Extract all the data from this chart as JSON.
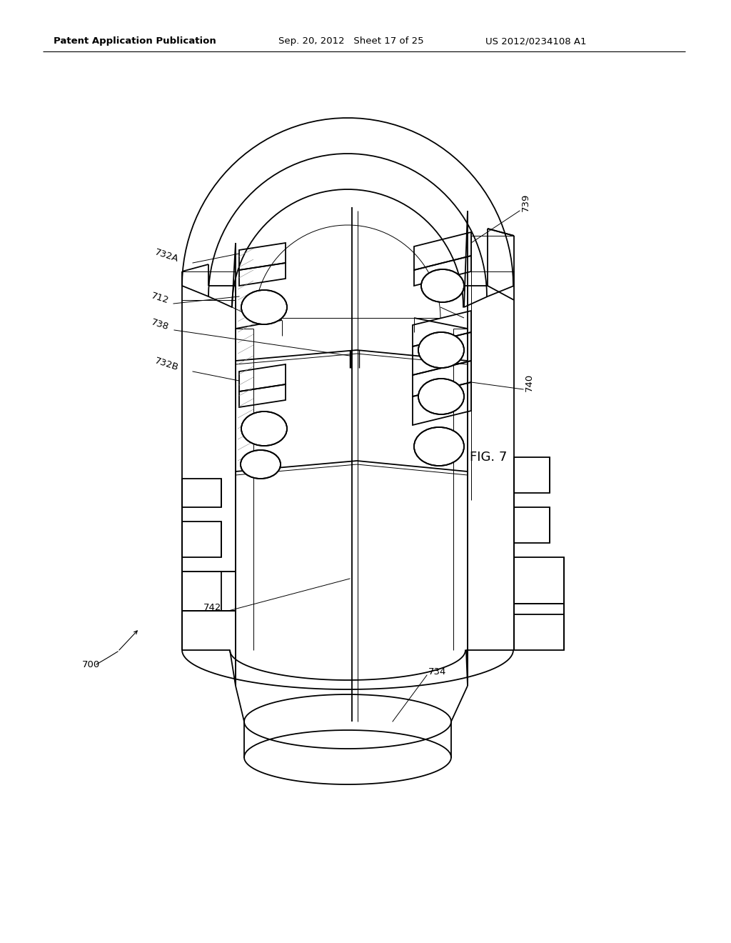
{
  "bg_color": "#ffffff",
  "line_color": "#000000",
  "header_left": "Patent Application Publication",
  "header_mid": "Sep. 20, 2012   Sheet 17 of 25",
  "header_right": "US 2012/0234108 A1",
  "fig_label": "FIG. 7",
  "lw_main": 1.3,
  "lw_thin": 0.7,
  "lw_med": 1.0
}
